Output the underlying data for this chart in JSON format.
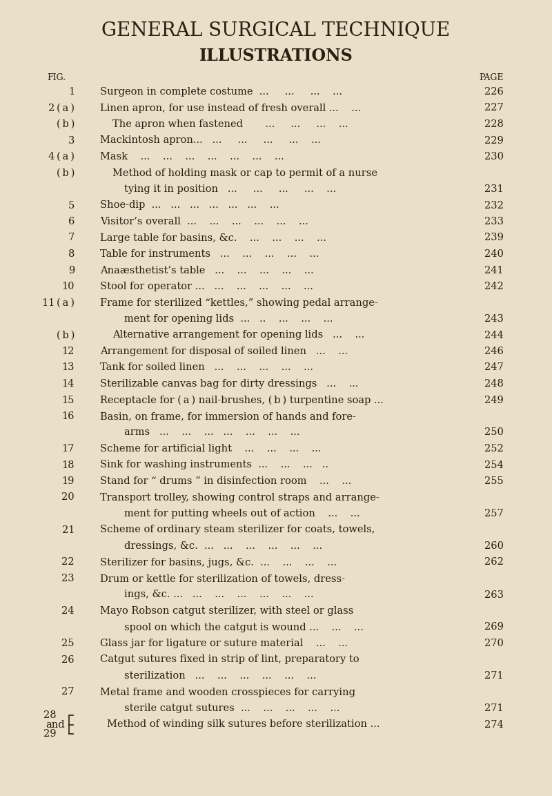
{
  "bg_color": "#e8e0c8",
  "text_color": "#2a2010",
  "title1": "GENERAL SURGICAL TECHNIQUE",
  "title2": "ILLUSTRATIONS",
  "fig_label": "FIG.",
  "page_label": "PAGE",
  "entries": [
    {
      "fig": "1",
      "indent": 0,
      "text": "Surgeon in complete costume  ...     ...     ...    ...",
      "page": "226"
    },
    {
      "fig": "2 ( a )",
      "indent": 0,
      "text": "Linen apron, for use instead of fresh overall ...    ...",
      "page": "227"
    },
    {
      "fig": "( b )",
      "indent": 1,
      "text": "The apron when fastened       ...     ...     ...    ...",
      "page": "228"
    },
    {
      "fig": "3",
      "indent": 0,
      "text": "Mackintosh apron...   ...     ...     ...     ...    ...",
      "page": "229"
    },
    {
      "fig": "4 ( a )",
      "indent": 0,
      "text": "Mask    ...    ...    ...    ...    ...    ...    ...",
      "page": "230"
    },
    {
      "fig": "( b )",
      "indent": 1,
      "text": "Method of holding mask or cap to permit of a nurse",
      "page": null
    },
    {
      "fig": "",
      "indent": 2,
      "text": "tying it in position   ...     ...     ...     ...    ...",
      "page": "231"
    },
    {
      "fig": "5",
      "indent": 0,
      "text": "Shoe-dip  ...   ...   ...   ...   ...   ...    ...",
      "page": "232"
    },
    {
      "fig": "6",
      "indent": 0,
      "text": "Visitor’s overall  ...    ...    ...    ...    ...    ...",
      "page": "233"
    },
    {
      "fig": "7",
      "indent": 0,
      "text": "Large table for basins, &c.    ...    ...    ...    ...",
      "page": "239"
    },
    {
      "fig": "8",
      "indent": 0,
      "text": "Table for instruments   ...    ...    ...    ...    ...",
      "page": "240"
    },
    {
      "fig": "9",
      "indent": 0,
      "text": "Anaæsthetist’s table   ...    ...    ...    ...    ...",
      "page": "241"
    },
    {
      "fig": "10",
      "indent": 0,
      "text": "Stool for operator ...   ...    ...    ...    ...    ...",
      "page": "242"
    },
    {
      "fig": "11 ( a )",
      "indent": 0,
      "text": "Frame for sterilized “kettles,” showing pedal arrange-",
      "page": null
    },
    {
      "fig": "",
      "indent": 2,
      "text": "ment for opening lids  ...   ..    ...    ...    ...",
      "page": "243"
    },
    {
      "fig": "( b )",
      "indent": 1,
      "text": "Alternative arrangement for opening lids   ...    ...",
      "page": "244"
    },
    {
      "fig": "12",
      "indent": 0,
      "text": "Arrangement for disposal of soiled linen   ...    ...",
      "page": "246"
    },
    {
      "fig": "13",
      "indent": 0,
      "text": "Tank for soiled linen   ...    ...    ...    ...    ...",
      "page": "247"
    },
    {
      "fig": "14",
      "indent": 0,
      "text": "Sterilizable canvas bag for dirty dressings   ...    ...",
      "page": "248"
    },
    {
      "fig": "15",
      "indent": 0,
      "text": "Receptacle for ( a ) nail-brushes, ( b ) turpentine soap ...",
      "page": "249"
    },
    {
      "fig": "16",
      "indent": 0,
      "text": "Basin, on frame, for immersion of hands and fore-",
      "page": null
    },
    {
      "fig": "",
      "indent": 2,
      "text": "arms   ...    ...    ...   ...    ...    ...    ...",
      "page": "250"
    },
    {
      "fig": "17",
      "indent": 0,
      "text": "Scheme for artificial light    ...    ...    ...    ...",
      "page": "252"
    },
    {
      "fig": "18",
      "indent": 0,
      "text": "Sink for washing instruments  ...    ...    ...   ..",
      "page": "254"
    },
    {
      "fig": "19",
      "indent": 0,
      "text": "Stand for “ drums ” in disinfection room    ...    ...",
      "page": "255"
    },
    {
      "fig": "20",
      "indent": 0,
      "text": "Transport trolley, showing control straps and arrange-",
      "page": null
    },
    {
      "fig": "",
      "indent": 2,
      "text": "ment for putting wheels out of action    ...    ...",
      "page": "257"
    },
    {
      "fig": "21",
      "indent": 0,
      "text": "Scheme of ordinary steam sterilizer for coats, towels,",
      "page": null
    },
    {
      "fig": "",
      "indent": 2,
      "text": "dressings, &c.  ...   ...    ...    ...    ...    ...",
      "page": "260"
    },
    {
      "fig": "22",
      "indent": 0,
      "text": "Sterilizer for basins, jugs, &c.  ...    ...    ...    ...",
      "page": "262"
    },
    {
      "fig": "23",
      "indent": 0,
      "text": "Drum or kettle for sterilization of towels, dress-",
      "page": null
    },
    {
      "fig": "",
      "indent": 2,
      "text": "ings, &c. ...   ...    ...    ...    ...    ...    ...",
      "page": "263"
    },
    {
      "fig": "24",
      "indent": 0,
      "text": "Mayo Robson catgut sterilizer, with steel or glass",
      "page": null
    },
    {
      "fig": "",
      "indent": 2,
      "text": "spool on which the catgut is wound ...    ...    ...",
      "page": "269"
    },
    {
      "fig": "25",
      "indent": 0,
      "text": "Glass jar for ligature or suture material    ...    ...",
      "page": "270"
    },
    {
      "fig": "26",
      "indent": 0,
      "text": "Catgut sutures fixed in strip of lint, preparatory to",
      "page": null
    },
    {
      "fig": "",
      "indent": 2,
      "text": "sterilization   ...    ...    ...    ...    ...    ...",
      "page": "271"
    },
    {
      "fig": "27",
      "indent": 0,
      "text": "Metal frame and wooden crosspieces for carrying",
      "page": null
    },
    {
      "fig": "",
      "indent": 2,
      "text": "sterile catgut sutures  ...    ...    ...    ...    ...",
      "page": "271"
    },
    {
      "fig": "28_and_29",
      "indent": 0,
      "text": "Method of winding silk sutures before sterilization ...",
      "page": "274",
      "special": true
    }
  ],
  "font_size": 10.5,
  "title1_size": 20,
  "title2_size": 17,
  "label_size": 9
}
